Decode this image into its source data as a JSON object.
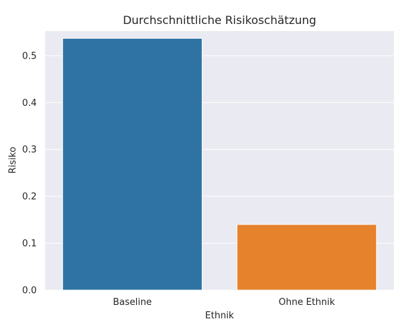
{
  "chart_data": {
    "type": "bar",
    "title": "Durchschnittliche Risikoschätzung",
    "xlabel": "Ethnik",
    "ylabel": "Risiko",
    "categories": [
      "Baseline",
      "Ohne Ethnik"
    ],
    "values": [
      0.537,
      0.14
    ],
    "colors": [
      "#2e73a3",
      "#e6822b"
    ],
    "ylim": [
      0,
      0.5525
    ],
    "yticks": [
      0.0,
      0.1,
      0.2,
      0.3,
      0.4,
      0.5
    ],
    "ytick_labels": [
      "0.0",
      "0.1",
      "0.2",
      "0.3",
      "0.4",
      "0.5"
    ],
    "grid": "horizontal",
    "plot_background": "#eaeaf2"
  }
}
